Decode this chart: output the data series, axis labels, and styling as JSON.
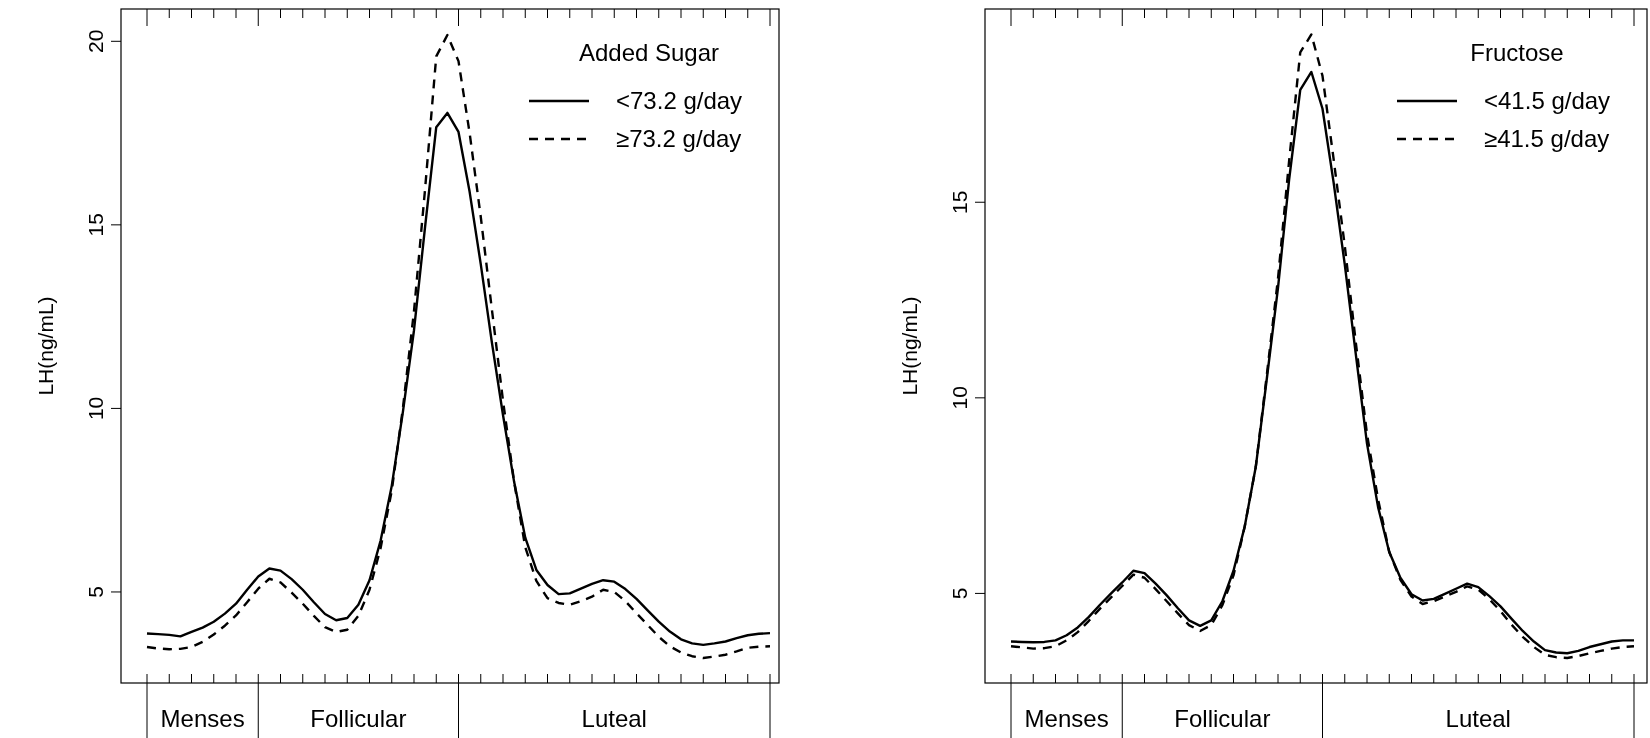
{
  "chart_data": [
    {
      "type": "line",
      "ylabel": "LH(ng/mL)",
      "legend_title": "Added Sugar",
      "legend": "top right",
      "tick_labels": "y",
      "ylim": [
        2.52,
        20.88
      ],
      "yticks": [
        5,
        10,
        15,
        20
      ],
      "annotations": [
        "Menses",
        "Follicular",
        "Luteal"
      ],
      "categories": [
        null,
        null,
        null,
        null,
        null,
        null,
        null,
        null,
        null,
        null,
        null,
        null,
        null,
        null,
        null,
        null,
        null,
        null,
        null,
        null,
        null,
        null,
        null,
        null,
        null,
        null,
        null,
        null,
        null,
        null,
        null,
        null,
        null,
        null,
        null,
        null,
        null,
        null,
        null,
        null,
        null,
        null,
        null,
        null,
        null,
        null,
        null,
        null,
        null,
        null,
        null,
        null,
        null,
        null,
        null,
        null,
        null
      ],
      "series": [
        {
          "name": "<73.2 g/day",
          "color": "#000000",
          "line_style": "solid",
          "values": [
            3.87,
            3.85,
            3.83,
            3.79,
            3.91,
            4.03,
            4.19,
            4.41,
            4.68,
            5.06,
            5.42,
            5.64,
            5.58,
            5.35,
            5.06,
            4.72,
            4.4,
            4.23,
            4.29,
            4.65,
            5.32,
            6.4,
            7.89,
            9.9,
            12.13,
            14.96,
            17.66,
            18.05,
            17.53,
            15.9,
            13.93,
            11.8,
            9.82,
            8.0,
            6.48,
            5.6,
            5.19,
            4.94,
            4.96,
            5.09,
            5.22,
            5.32,
            5.28,
            5.08,
            4.81,
            4.5,
            4.19,
            3.92,
            3.71,
            3.6,
            3.56,
            3.6,
            3.65,
            3.74,
            3.82,
            3.86,
            3.88
          ]
        },
        {
          "name": "≥73.2 g/day",
          "color": "#000000",
          "line_style": "dashed",
          "values": [
            3.5,
            3.46,
            3.44,
            3.45,
            3.5,
            3.64,
            3.84,
            4.08,
            4.36,
            4.72,
            5.09,
            5.36,
            5.26,
            4.98,
            4.68,
            4.35,
            4.04,
            3.91,
            3.97,
            4.35,
            5.06,
            6.2,
            7.76,
            10.0,
            12.65,
            15.99,
            19.59,
            20.17,
            19.46,
            17.5,
            15.22,
            12.7,
            10.21,
            8.0,
            6.22,
            5.3,
            4.83,
            4.7,
            4.65,
            4.75,
            4.87,
            5.06,
            5.0,
            4.75,
            4.42,
            4.1,
            3.78,
            3.52,
            3.35,
            3.25,
            3.2,
            3.24,
            3.29,
            3.38,
            3.48,
            3.51,
            3.52
          ]
        }
      ]
    },
    {
      "type": "line",
      "ylabel": "LH(ng/mL)",
      "legend_title": "Fructose",
      "legend": "top right",
      "tick_labels": "y",
      "ylim": [
        2.71,
        19.94
      ],
      "yticks": [
        5,
        10,
        15
      ],
      "annotations": [
        "Menses",
        "Follicular",
        "Luteal"
      ],
      "categories": [
        null,
        null,
        null,
        null,
        null,
        null,
        null,
        null,
        null,
        null,
        null,
        null,
        null,
        null,
        null,
        null,
        null,
        null,
        null,
        null,
        null,
        null,
        null,
        null,
        null,
        null,
        null,
        null,
        null,
        null,
        null,
        null,
        null,
        null,
        null,
        null,
        null,
        null,
        null,
        null,
        null,
        null,
        null,
        null,
        null,
        null,
        null,
        null,
        null,
        null,
        null,
        null,
        null,
        null,
        null,
        null,
        null
      ],
      "series": [
        {
          "name": "<41.5 g/day",
          "color": "#000000",
          "line_style": "solid",
          "values": [
            3.77,
            3.76,
            3.75,
            3.76,
            3.8,
            3.93,
            4.13,
            4.4,
            4.71,
            5.0,
            5.28,
            5.58,
            5.52,
            5.25,
            4.95,
            4.62,
            4.31,
            4.17,
            4.31,
            4.8,
            5.58,
            6.7,
            8.23,
            10.5,
            12.81,
            15.58,
            17.87,
            18.33,
            17.39,
            15.5,
            13.41,
            11.1,
            8.83,
            7.2,
            6.06,
            5.4,
            4.98,
            4.82,
            4.86,
            4.99,
            5.12,
            5.25,
            5.16,
            4.93,
            4.67,
            4.35,
            4.04,
            3.77,
            3.55,
            3.49,
            3.47,
            3.53,
            3.63,
            3.7,
            3.77,
            3.8,
            3.8
          ]
        },
        {
          "name": "≥41.5 g/day",
          "color": "#000000",
          "line_style": "dashed",
          "values": [
            3.65,
            3.62,
            3.59,
            3.6,
            3.65,
            3.8,
            4.01,
            4.3,
            4.61,
            4.9,
            5.19,
            5.48,
            5.4,
            5.11,
            4.8,
            4.49,
            4.19,
            4.04,
            4.19,
            4.7,
            5.46,
            6.7,
            8.23,
            10.6,
            13.05,
            16.06,
            18.83,
            19.29,
            18.23,
            16.1,
            13.89,
            11.4,
            9.07,
            7.4,
            6.06,
            5.35,
            4.92,
            4.73,
            4.8,
            4.92,
            5.04,
            5.18,
            5.1,
            4.85,
            4.55,
            4.2,
            3.89,
            3.63,
            3.43,
            3.37,
            3.35,
            3.4,
            3.47,
            3.53,
            3.59,
            3.63,
            3.65
          ]
        }
      ]
    }
  ]
}
